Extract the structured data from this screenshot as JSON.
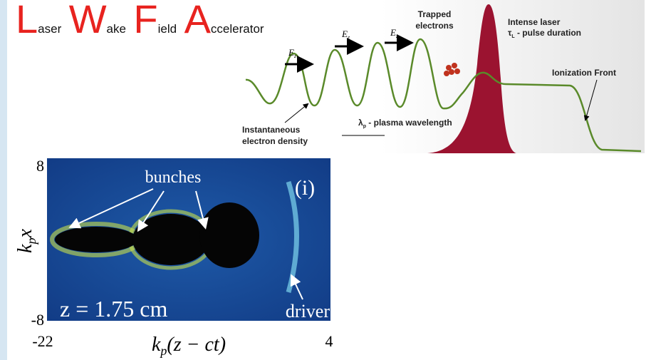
{
  "title": {
    "parts": [
      {
        "big": "L",
        "small": "aser"
      },
      {
        "big": "W",
        "small": "ake"
      },
      {
        "big": "F",
        "small": "ield"
      },
      {
        "big": "A",
        "small": "ccelerator"
      }
    ]
  },
  "diagram": {
    "field_labels": [
      {
        "main": "E",
        "sub": "z"
      },
      {
        "main": "E",
        "sub": "z"
      },
      {
        "main": "E",
        "sub": "z"
      }
    ],
    "trapped": [
      "Trapped",
      "electrons"
    ],
    "laser": {
      "line1": "Intense laser",
      "symbol": "τ",
      "sub": "L",
      "rest": " - pulse duration"
    },
    "ionization": "Ionization Front",
    "density": [
      "Instantaneous",
      "electron density"
    ],
    "wavelength": {
      "symbol": "λ",
      "sub": "p",
      "rest": " - plasma wavelength"
    }
  },
  "plot": {
    "y_top": "8",
    "y_bottom": "-8",
    "x_left": "-22",
    "x_right": "4",
    "y_label": {
      "k": "k",
      "sub": "p",
      "rest": "x"
    },
    "x_label": {
      "k": "k",
      "sub": "p",
      "rest": "(z − ct)"
    },
    "bunches": "bunches",
    "panel": "(i)",
    "z_label": "z = 1.75 cm",
    "driver": "driver"
  }
}
